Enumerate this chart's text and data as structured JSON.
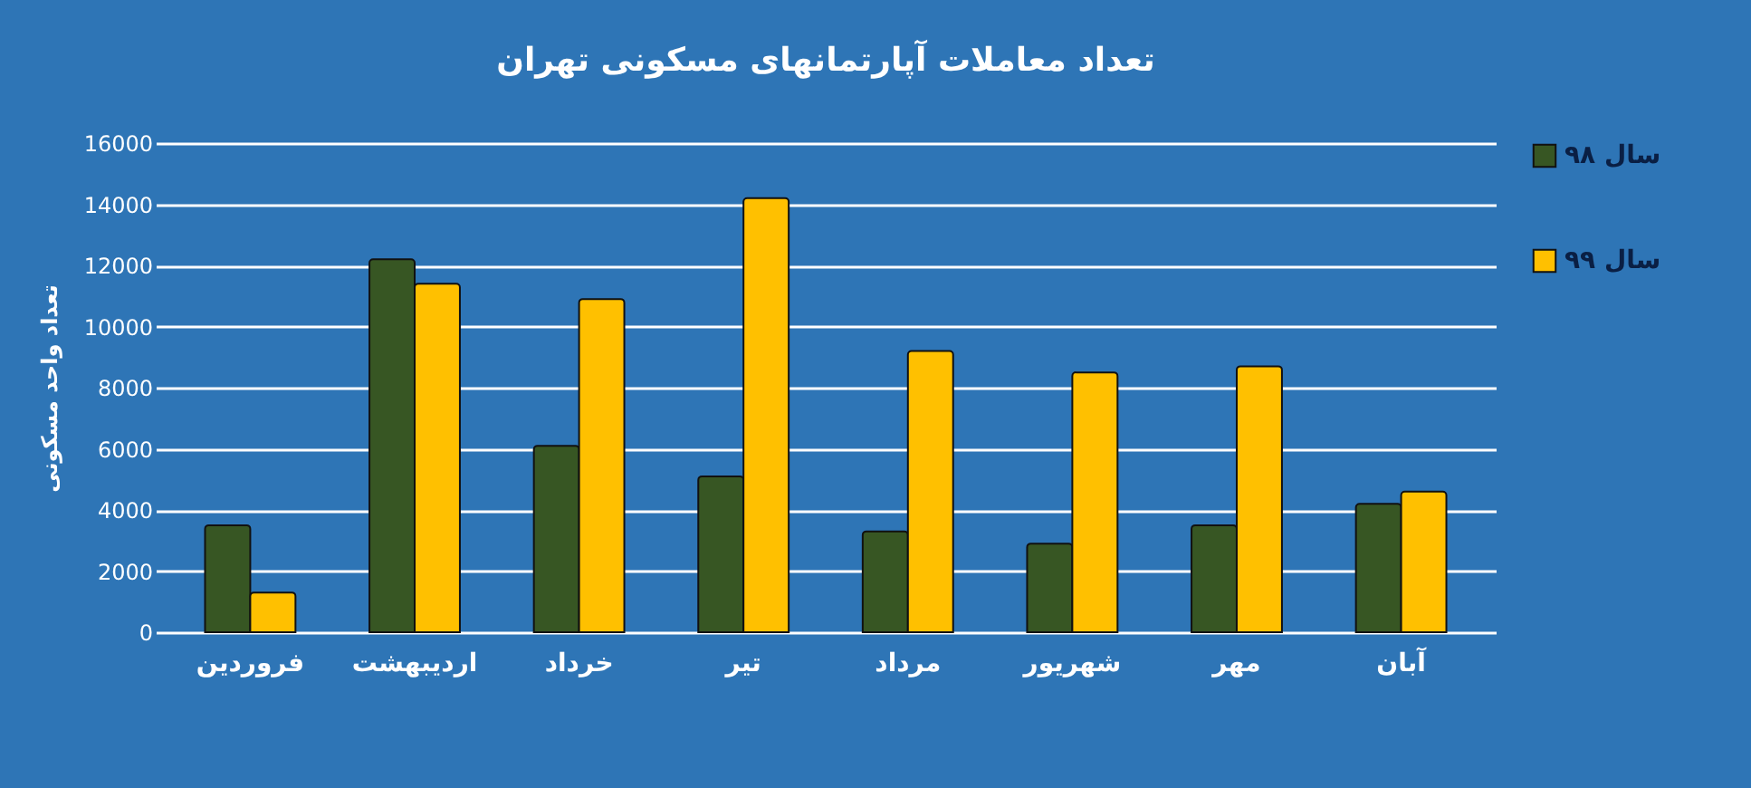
{
  "chart_data": {
    "type": "bar",
    "title": "تعداد معاملات آپارتمانهای مسکونی تهران",
    "ylabel": "تعداد واحد مسکونی",
    "categories": [
      "فروردین",
      "اردیبهشت",
      "خرداد",
      "تیر",
      "مرداد",
      "شهریور",
      "مهر",
      "آبان"
    ],
    "series": [
      {
        "name": "سال ۹۸",
        "color": "#375623",
        "values": [
          3500,
          12200,
          6100,
          5100,
          3300,
          2900,
          3500,
          4200
        ]
      },
      {
        "name": "سال ۹۹",
        "color": "#ffc000",
        "values": [
          1300,
          11400,
          10900,
          14200,
          9200,
          8500,
          8700,
          4600
        ]
      }
    ],
    "ylim": [
      0,
      16000
    ],
    "yticks": [
      0,
      2000,
      4000,
      6000,
      8000,
      10000,
      12000,
      14000,
      16000
    ],
    "grid": "y",
    "legend": "right"
  }
}
